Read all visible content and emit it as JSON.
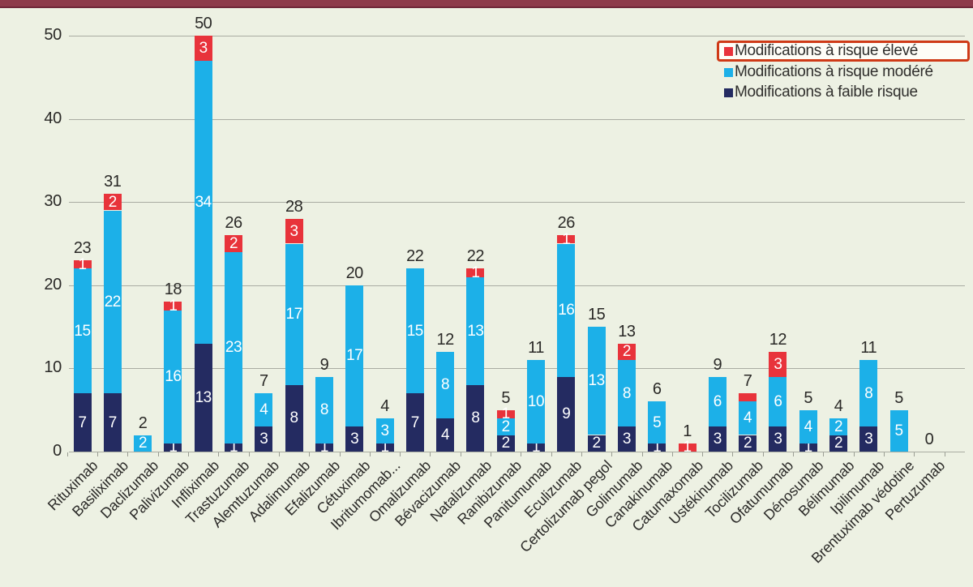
{
  "page": {
    "background_color": "#edf1e3",
    "top_bar_color": "#8d3a4a"
  },
  "legend": {
    "highlight_box_color": "#cf3a17",
    "items": [
      {
        "label": "Modifications à risque élevé",
        "color": "#e8333b",
        "highlighted": true
      },
      {
        "label": "Modifications à risque modéré",
        "color": "#1cb0e8",
        "highlighted": false
      },
      {
        "label": "Modifications à faible risque",
        "color": "#242b61",
        "highlighted": false
      }
    ]
  },
  "chart_data": {
    "type": "bar",
    "stacked": true,
    "title": "",
    "xlabel": "",
    "ylabel": "",
    "ylim": [
      0,
      50
    ],
    "yticks": [
      0,
      10,
      20,
      30,
      40,
      50
    ],
    "grid": true,
    "legend_position": "top-right",
    "categories": [
      "Rituximab",
      "Basiliximab",
      "Daclizumab",
      "Palivizumab",
      "Infliximab",
      "Trastuzumab",
      "Alemtuzumab",
      "Adalimumab",
      "Efalizumab",
      "Cétuximab",
      "Ibritumomab...",
      "Omalizumab",
      "Bévacizumab",
      "Natalizumab",
      "Ranibizumab",
      "Panitumumab",
      "Eculizumab",
      "Certolizumab pegol",
      "Golimumab",
      "Canakinumab",
      "Catumaxomab",
      "Ustékinumab",
      "Tocilizumab",
      "Ofatumumab",
      "Dénosumab",
      "Bélimumab",
      "Ipilimumab",
      "Brentuximab védotine",
      "Pertuzumab"
    ],
    "series": [
      {
        "name": "Modifications à faible risque",
        "color": "#242b61",
        "values": [
          7,
          7,
          0,
          1,
          13,
          1,
          3,
          8,
          1,
          3,
          1,
          7,
          4,
          8,
          2,
          1,
          9,
          2,
          3,
          1,
          0,
          3,
          2,
          3,
          1,
          2,
          3,
          0,
          0
        ],
        "labels": [
          "7",
          "7",
          "",
          "1",
          "13",
          "1",
          "3",
          "8",
          "1",
          "3",
          "1",
          "7",
          "4",
          "8",
          "2",
          "1",
          "9",
          "2",
          "3",
          "1",
          "",
          "3",
          "2",
          "3",
          "1",
          "2",
          "3",
          "",
          ""
        ]
      },
      {
        "name": "Modifications à risque modéré",
        "color": "#1cb0e8",
        "values": [
          15,
          22,
          2,
          16,
          34,
          23,
          4,
          17,
          8,
          17,
          3,
          15,
          8,
          13,
          2,
          10,
          16,
          13,
          8,
          5,
          0,
          6,
          4,
          6,
          4,
          2,
          8,
          5,
          0
        ],
        "labels": [
          "15",
          "22",
          "2",
          "16",
          "34",
          "23",
          "4",
          "17",
          "8",
          "17",
          "3",
          "15",
          "8",
          "13",
          "2",
          "10",
          "16",
          "13",
          "8",
          "5",
          "",
          "6",
          "4",
          "6",
          "4",
          "2",
          "8",
          "5",
          ""
        ]
      },
      {
        "name": "Modifications à risque élevé",
        "color": "#e8333b",
        "values": [
          1,
          2,
          0,
          1,
          3,
          2,
          0,
          3,
          0,
          0,
          0,
          0,
          0,
          1,
          1,
          0,
          1,
          0,
          2,
          0,
          1,
          0,
          1,
          3,
          0,
          0,
          0,
          0,
          0
        ],
        "labels": [
          "1",
          "2",
          "",
          "1",
          "3",
          "2",
          "",
          "3",
          "",
          "",
          "",
          "",
          "",
          "1",
          "1",
          "",
          "1",
          "",
          "2",
          "",
          "1",
          "",
          "",
          "3",
          "",
          "",
          "",
          "",
          ""
        ]
      }
    ],
    "totals": [
      23,
      31,
      2,
      18,
      50,
      26,
      7,
      28,
      9,
      20,
      4,
      22,
      12,
      22,
      5,
      11,
      26,
      15,
      13,
      6,
      1,
      9,
      7,
      12,
      5,
      4,
      11,
      5,
      0
    ]
  }
}
